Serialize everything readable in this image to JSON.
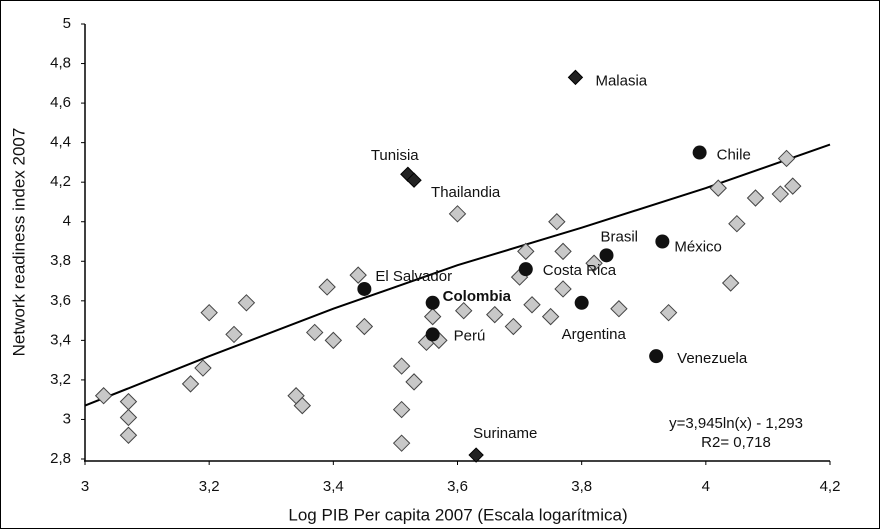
{
  "chart_data": {
    "type": "scatter",
    "xlabel": "Log PIB Per capita 2007 (Escala logarítmica)",
    "ylabel": "Network readiness index 2007",
    "xlim": [
      3,
      4.2
    ],
    "ylim": [
      2.8,
      5
    ],
    "xticks": [
      3,
      {
        "value": 3.2,
        "label": "3,2"
      },
      {
        "value": 3.4,
        "label": "3,4"
      },
      {
        "value": 3.6,
        "label": "3,6"
      },
      {
        "value": 3.8,
        "label": "3,8"
      },
      4,
      {
        "value": 4.2,
        "label": "4,2"
      }
    ],
    "yticks": [
      {
        "value": 2.8,
        "label": "2,8"
      },
      3,
      {
        "value": 3.2,
        "label": "3,2"
      },
      {
        "value": 3.4,
        "label": "3,4"
      },
      {
        "value": 3.6,
        "label": "3,6"
      },
      {
        "value": 3.8,
        "label": "3,8"
      },
      4,
      {
        "value": 4.2,
        "label": "4,2"
      },
      {
        "value": 4.4,
        "label": "4,4"
      },
      {
        "value": 4.6,
        "label": "4,6"
      },
      {
        "value": 4.8,
        "label": "4,8"
      },
      5
    ],
    "series": [
      {
        "marker": "diamond",
        "color": "#c8c8c8",
        "x": [
          3.03,
          3.07,
          3.07,
          3.07,
          3.17,
          3.19,
          3.2,
          3.24,
          3.26,
          3.34,
          3.35,
          3.37,
          3.4,
          3.39,
          3.44,
          3.45,
          3.51,
          3.53,
          3.51,
          3.51,
          3.56,
          3.55,
          3.57,
          3.61,
          3.6,
          3.66,
          3.69,
          3.72,
          3.7,
          3.71,
          3.76,
          3.75,
          3.77,
          3.77,
          3.82,
          3.86,
          3.94,
          4.02,
          4.08,
          4.05,
          4.04,
          4.12,
          4.13,
          4.14
        ],
        "y": [
          3.12,
          3.09,
          3.01,
          2.92,
          3.18,
          3.26,
          3.54,
          3.43,
          3.59,
          3.12,
          3.07,
          3.44,
          3.4,
          3.67,
          3.73,
          3.47,
          3.27,
          3.19,
          3.05,
          2.88,
          3.52,
          3.39,
          3.4,
          3.55,
          4.04,
          3.53,
          3.47,
          3.58,
          3.72,
          3.85,
          4.0,
          3.52,
          3.66,
          3.85,
          3.79,
          3.56,
          3.54,
          4.17,
          4.12,
          3.99,
          3.69,
          4.14,
          4.32,
          4.18
        ]
      },
      {
        "marker": "circle",
        "color": "#111111",
        "x": [
          3.45,
          3.56,
          3.56,
          3.71,
          3.84,
          3.8,
          3.93,
          3.99,
          3.92
        ],
        "y": [
          3.66,
          3.59,
          3.43,
          3.76,
          3.83,
          3.59,
          3.9,
          4.35,
          3.32
        ],
        "labels": [
          "El Salvador",
          "Colombia",
          "Perú",
          "Costa Rica",
          "Brasil",
          "Argentina",
          "México",
          "Chile",
          "Venezuela"
        ]
      },
      {
        "marker": "diamond",
        "color": "#222222",
        "x": [
          3.79,
          3.52,
          3.53,
          3.63
        ],
        "y": [
          4.73,
          4.24,
          4.21,
          2.82
        ],
        "labels": [
          "Malasia",
          "Tunisia",
          "Thailandia",
          "Suriname"
        ]
      }
    ],
    "trendline": {
      "x": [
        3,
        3.2,
        3.4,
        3.6,
        3.8,
        4,
        4.2
      ],
      "y": [
        3.07,
        3.32,
        3.56,
        3.78,
        3.97,
        4.17,
        4.39
      ]
    },
    "annotations": [
      "y=3,945ln(x) - 1,293",
      "R2= 0,718"
    ]
  }
}
